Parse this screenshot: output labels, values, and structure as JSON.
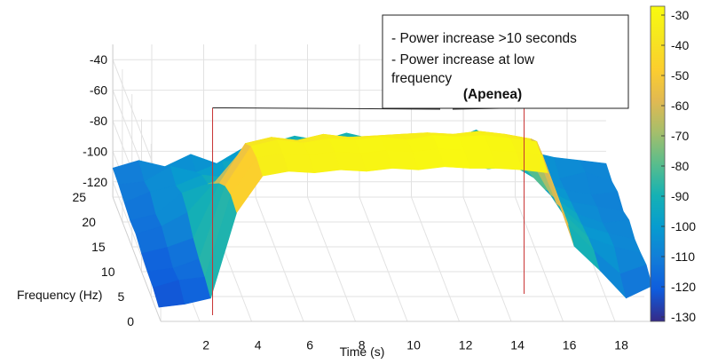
{
  "chart_data": {
    "type": "surface",
    "title": "",
    "xlabel": "Time (s)",
    "ylabel": "Frequency (Hz)",
    "zlabel": "",
    "x_ticks": [
      2,
      4,
      6,
      8,
      10,
      12,
      14,
      16,
      18
    ],
    "y_ticks": [
      0,
      5,
      10,
      15,
      20,
      25
    ],
    "z_ticks": [
      -120,
      -100,
      -80,
      -60,
      -40
    ],
    "xlim": [
      0.5,
      19.5
    ],
    "ylim": [
      0,
      25
    ],
    "zlim": [
      -130,
      -30
    ],
    "grid": true,
    "colormap": "parula",
    "colorbar": {
      "ticks": [
        -30,
        -40,
        -50,
        -60,
        -70,
        -80,
        -90,
        -100,
        -110,
        -120,
        -130
      ],
      "range": [
        -130,
        -30
      ]
    },
    "annotation": {
      "lines": [
        "- Power increase >10 seconds",
        "- Power increase at low",
        "frequency"
      ],
      "title": "(Apenea)",
      "x_start": 3.9,
      "x_end": 15.9
    },
    "surface": {
      "time_s": [
        0.5,
        1.5,
        2.5,
        3.5,
        4.5,
        5.5,
        6.5,
        7.5,
        8.5,
        9.5,
        10.5,
        11.5,
        12.5,
        13.5,
        14.5,
        15.5,
        16.5,
        17.5,
        18.5,
        19.5
      ],
      "freq_hz": [
        25,
        22,
        19,
        16,
        13,
        10,
        7,
        4,
        1
      ],
      "power_db": [
        [
          -111,
          -106,
          -110,
          -102,
          -108,
          -98,
          -95,
          -90,
          -93,
          -88,
          -92,
          -90,
          -88,
          -93,
          -86,
          -95,
          -100,
          -104,
          -106,
          -108
        ],
        [
          -112,
          -110,
          -100,
          -104,
          -97,
          -96,
          -88,
          -94,
          -87,
          -92,
          -86,
          -91,
          -85,
          -95,
          -90,
          -92,
          -103,
          -108,
          -104,
          -110
        ],
        [
          -114,
          -107,
          -103,
          -96,
          -98,
          -90,
          -92,
          -86,
          -93,
          -85,
          -90,
          -84,
          -90,
          -86,
          -92,
          -90,
          -100,
          -106,
          -109,
          -107
        ],
        [
          -116,
          -112,
          -98,
          -92,
          -86,
          -80,
          -76,
          -74,
          -72,
          -75,
          -70,
          -73,
          -71,
          -72,
          -74,
          -78,
          -96,
          -104,
          -107,
          -110
        ],
        [
          -115,
          -110,
          -101,
          -82,
          -62,
          -56,
          -58,
          -54,
          -60,
          -55,
          -58,
          -54,
          -57,
          -55,
          -56,
          -60,
          -90,
          -102,
          -108,
          -106
        ],
        [
          -118,
          -114,
          -108,
          -72,
          -46,
          -42,
          -44,
          -40,
          -42,
          -41,
          -40,
          -39,
          -40,
          -38,
          -40,
          -43,
          -86,
          -100,
          -105,
          -109
        ],
        [
          -120,
          -118,
          -112,
          -64,
          -38,
          -34,
          -36,
          -33,
          -34,
          -32,
          -34,
          -31,
          -32,
          -31,
          -33,
          -35,
          -82,
          -98,
          -104,
          -108
        ],
        [
          -121,
          -116,
          -114,
          -60,
          -36,
          -33,
          -34,
          -32,
          -33,
          -31,
          -32,
          -30,
          -31,
          -31,
          -32,
          -34,
          -80,
          -97,
          -112,
          -106
        ],
        [
          -124,
          -122,
          -118,
          -62,
          -38,
          -35,
          -36,
          -34,
          -35,
          -33,
          -34,
          -32,
          -33,
          -33,
          -34,
          -36,
          -84,
          -100,
          -118,
          -110
        ]
      ]
    }
  }
}
